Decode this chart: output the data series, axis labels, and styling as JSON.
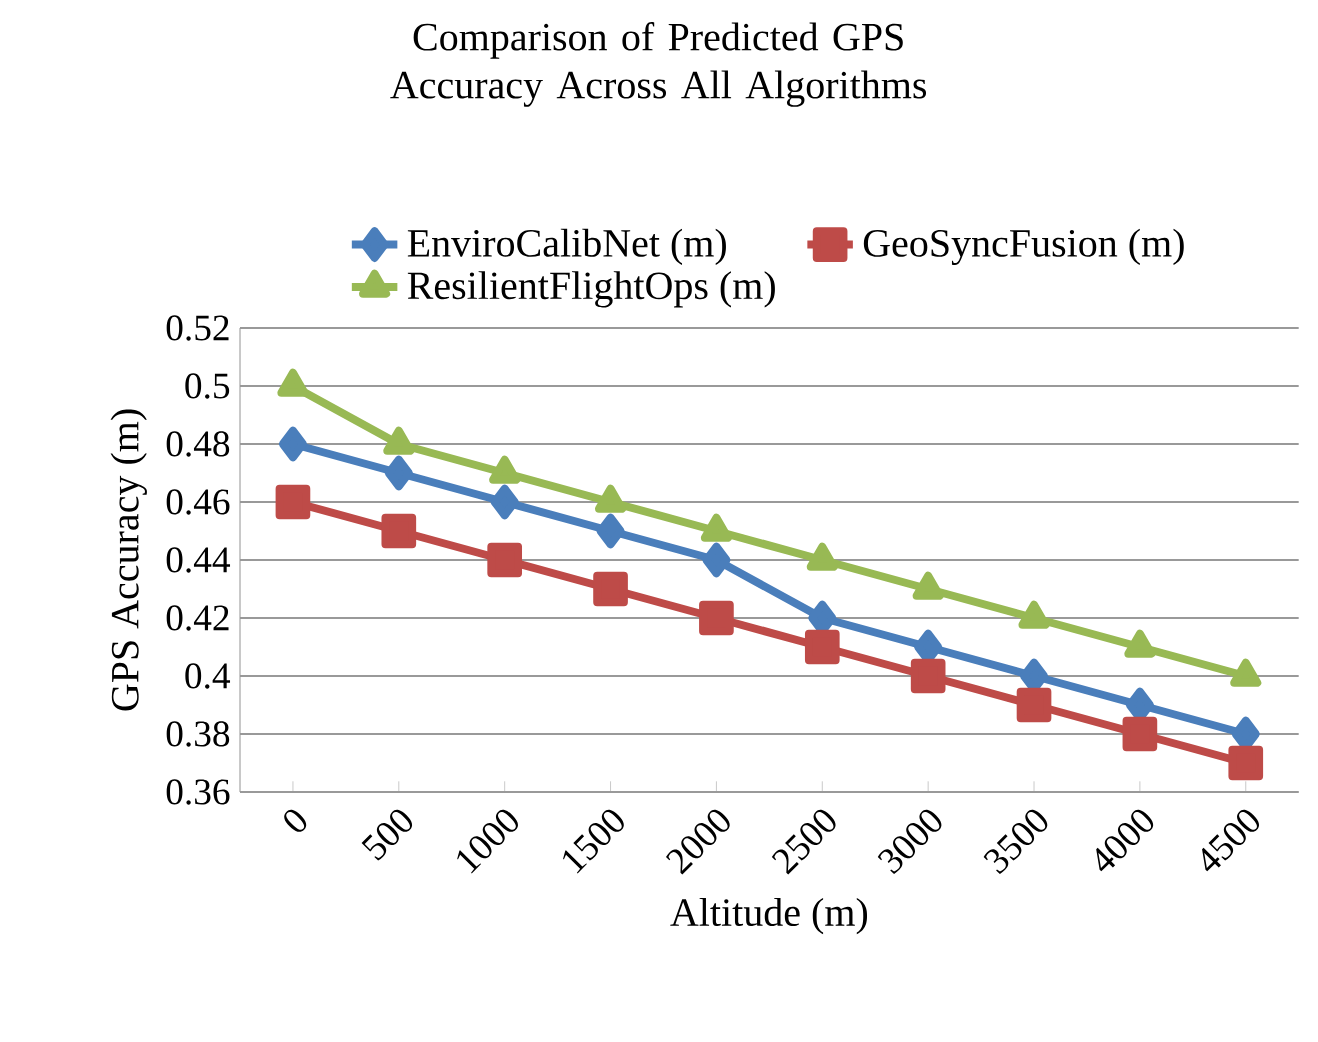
{
  "chart_data": {
    "type": "line",
    "title": "Comparison of Predicted GPS Accuracy Across All Algorithms",
    "xlabel": "Altitude (m)",
    "ylabel": "GPS  Accuracy  (m)",
    "categories": [
      "0",
      "500",
      "1000",
      "1500",
      "2000",
      "2500",
      "3000",
      "3500",
      "4000",
      "4500"
    ],
    "series": [
      {
        "name": "EnviroCalibNet (m)",
        "color": "#4a7ebb",
        "marker": "diamond",
        "values": [
          0.48,
          0.47,
          0.46,
          0.45,
          0.44,
          0.42,
          0.41,
          0.4,
          0.39,
          0.38
        ]
      },
      {
        "name": "GeoSyncFusion (m)",
        "color": "#be4b48",
        "marker": "square",
        "values": [
          0.46,
          0.45,
          0.44,
          0.43,
          0.42,
          0.41,
          0.4,
          0.39,
          0.38,
          0.37
        ]
      },
      {
        "name": "ResilientFlightOps (m)",
        "color": "#98b954",
        "marker": "triangle",
        "values": [
          0.5,
          0.48,
          0.47,
          0.46,
          0.45,
          0.44,
          0.43,
          0.42,
          0.41,
          0.4
        ]
      }
    ],
    "ylim": [
      0.36,
      0.52
    ],
    "yticks": [
      0.36,
      0.38,
      0.4,
      0.42,
      0.44,
      0.46,
      0.48,
      0.5,
      0.52
    ],
    "grid": "y",
    "legend": "top",
    "line_style": "solid"
  }
}
